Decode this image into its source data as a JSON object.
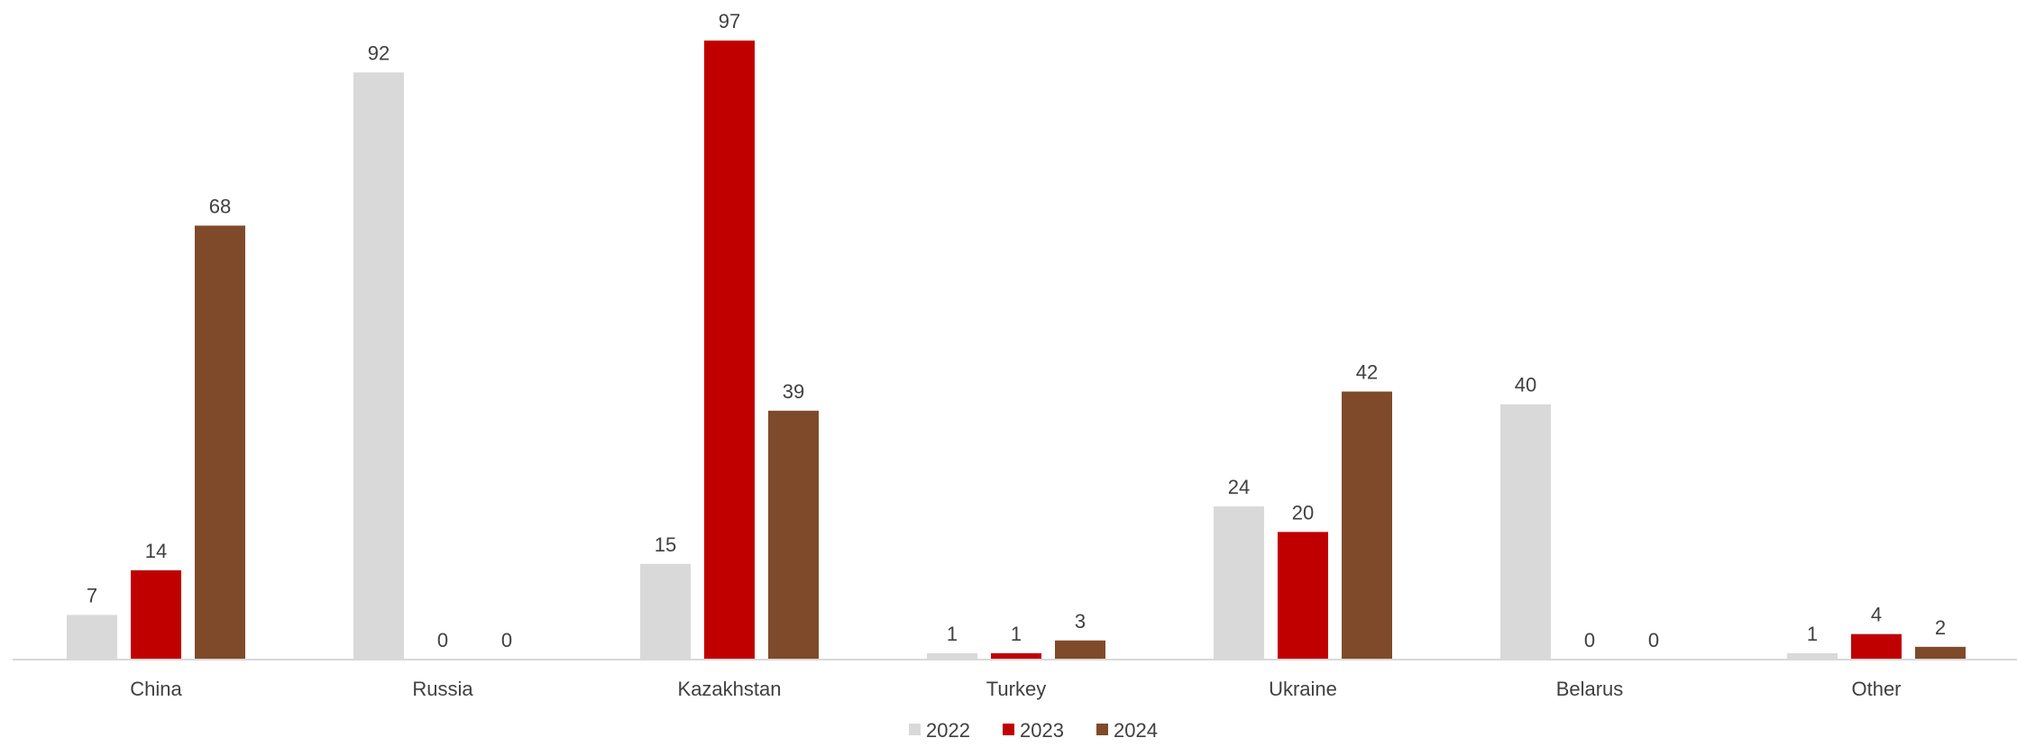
{
  "chart_data": {
    "type": "bar",
    "title": "",
    "xlabel": "",
    "ylabel": "",
    "categories": [
      "China",
      "Russia",
      "Kazakhstan",
      "Turkey",
      "Ukraine",
      "Belarus",
      "Other"
    ],
    "series": [
      {
        "name": "2022",
        "color": "#D9D9D9",
        "values": [
          7,
          92,
          15,
          1,
          24,
          40,
          1
        ]
      },
      {
        "name": "2023",
        "color": "#C00000",
        "values": [
          14,
          0,
          97,
          1,
          20,
          0,
          4
        ]
      },
      {
        "name": "2024",
        "color": "#7F4A2A",
        "values": [
          68,
          0,
          39,
          3,
          42,
          0,
          2
        ]
      }
    ],
    "ylim": [
      0,
      97
    ],
    "grid": false,
    "legend_position": "bottom",
    "data_labels": true
  }
}
